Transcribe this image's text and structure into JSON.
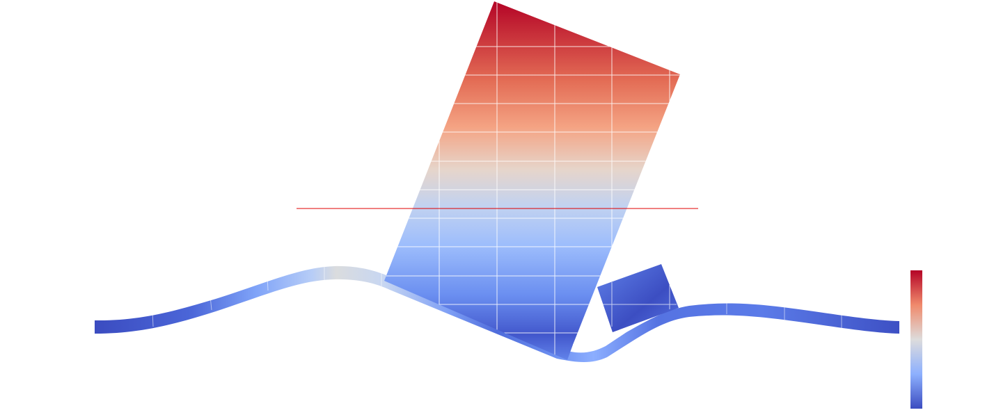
{
  "scene": {
    "colormap": "coolwarm",
    "colors": {
      "low": "#3b4cc0",
      "mid_low": "#8db0fe",
      "mid": "#dddcdc",
      "mid_high": "#f49a7b",
      "high": "#b40426",
      "mesh_lines": "#ffffff",
      "reference_line": "#e00000"
    },
    "colorbar": {
      "orientation": "vertical",
      "placement": "bottom-right",
      "show_labels": false
    }
  }
}
